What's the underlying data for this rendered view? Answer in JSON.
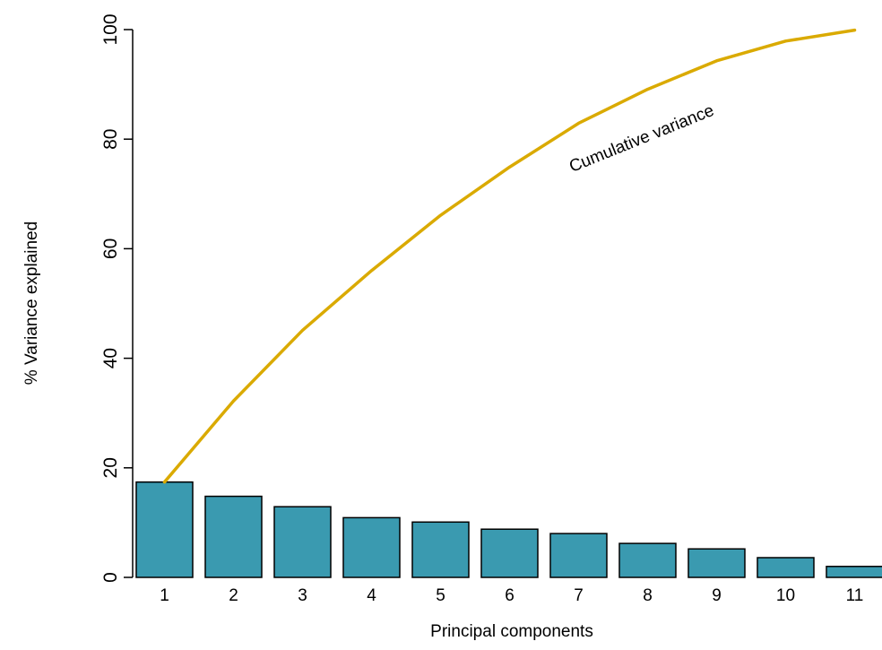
{
  "chart_data": {
    "type": "bar",
    "categories": [
      "1",
      "2",
      "3",
      "4",
      "5",
      "6",
      "7",
      "8",
      "9",
      "10",
      "11"
    ],
    "series": [
      {
        "values": [
          17.4,
          14.8,
          12.9,
          10.9,
          10.1,
          8.8,
          8.0,
          6.2,
          5.2,
          3.6,
          2.0
        ]
      }
    ],
    "cumulative": [
      17.4,
      32.2,
      45.1,
      56.0,
      66.1,
      74.9,
      82.9,
      89.1,
      94.3,
      97.9,
      99.9
    ],
    "annotation": "Cumulative variance",
    "xlabel": "Principal components",
    "ylabel": "% Variance explained",
    "ylim": [
      0,
      100
    ],
    "yticks": [
      "0",
      "20",
      "40",
      "60",
      "80",
      "100"
    ],
    "grid": false,
    "colors": {
      "bar": "#3A9AB0",
      "bar_border": "#000000",
      "line": "#DAAA00"
    }
  }
}
